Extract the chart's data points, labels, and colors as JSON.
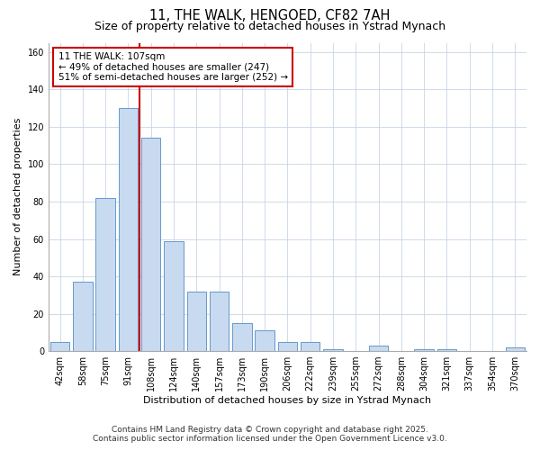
{
  "title_line1": "11, THE WALK, HENGOED, CF82 7AH",
  "title_line2": "Size of property relative to detached houses in Ystrad Mynach",
  "xlabel": "Distribution of detached houses by size in Ystrad Mynach",
  "ylabel": "Number of detached properties",
  "categories": [
    "42sqm",
    "58sqm",
    "75sqm",
    "91sqm",
    "108sqm",
    "124sqm",
    "140sqm",
    "157sqm",
    "173sqm",
    "190sqm",
    "206sqm",
    "222sqm",
    "239sqm",
    "255sqm",
    "272sqm",
    "288sqm",
    "304sqm",
    "321sqm",
    "337sqm",
    "354sqm",
    "370sqm"
  ],
  "values": [
    5,
    37,
    82,
    130,
    114,
    59,
    32,
    32,
    15,
    11,
    5,
    5,
    1,
    0,
    3,
    0,
    1,
    1,
    0,
    0,
    2
  ],
  "bar_color": "#c8daf0",
  "bar_edge_color": "#6699cc",
  "grid_color": "#c8d4e8",
  "background_color": "#ffffff",
  "annotation_line1": "11 THE WALK: 107sqm",
  "annotation_line2": "← 49% of detached houses are smaller (247)",
  "annotation_line3": "51% of semi-detached houses are larger (252) →",
  "annotation_box_color": "white",
  "annotation_box_edge_color": "#cc0000",
  "red_line_x": 3.5,
  "ylim": [
    0,
    165
  ],
  "yticks": [
    0,
    20,
    40,
    60,
    80,
    100,
    120,
    140,
    160
  ],
  "bar_width": 0.85,
  "fig_width": 6.0,
  "fig_height": 5.0,
  "title_fontsize": 10.5,
  "subtitle_fontsize": 9,
  "tick_fontsize": 7,
  "axis_label_fontsize": 8,
  "annotation_fontsize": 7.5,
  "footer_line1": "Contains HM Land Registry data © Crown copyright and database right 2025.",
  "footer_line2": "Contains public sector information licensed under the Open Government Licence v3.0.",
  "footer_fontsize": 6.5
}
